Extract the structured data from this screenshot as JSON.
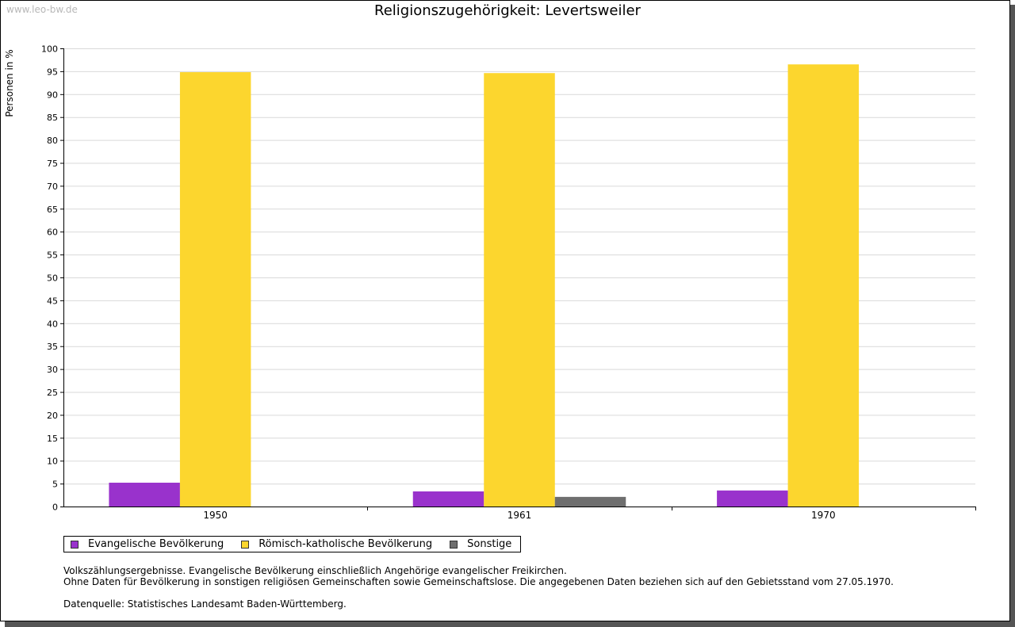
{
  "watermark": "www.leo-bw.de",
  "chart_data": {
    "type": "bar",
    "title": "Religionszugehörigkeit: Levertsweiler",
    "xlabel": "",
    "ylabel": "Personen in %",
    "ylim": [
      0,
      100
    ],
    "ytick_step": 5,
    "categories": [
      "1950",
      "1961",
      "1970"
    ],
    "series": [
      {
        "name": "Evangelische Bevölkerung",
        "color": "#9932cc",
        "values": [
          5.2,
          3.3,
          3.5
        ]
      },
      {
        "name": "Römisch-katholische Bevölkerung",
        "color": "#fcd62e",
        "values": [
          94.8,
          94.6,
          96.5
        ]
      },
      {
        "name": "Sonstige",
        "color": "#6e6e6e",
        "values": [
          null,
          2.1,
          null
        ]
      }
    ],
    "grid": true,
    "legend_position": "bottom-left"
  },
  "notes": {
    "line1": "Volkszählungsergebnisse. Evangelische Bevölkerung einschließlich Angehörige evangelischer Freikirchen.",
    "line2": "Ohne Daten für Bevölkerung in sonstigen religiösen Gemeinschaften sowie Gemeinschaftslose. Die angegebenen Daten beziehen sich auf den Gebietsstand vom 27.05.1970.",
    "source": "Datenquelle: Statistisches Landesamt Baden-Württemberg."
  }
}
